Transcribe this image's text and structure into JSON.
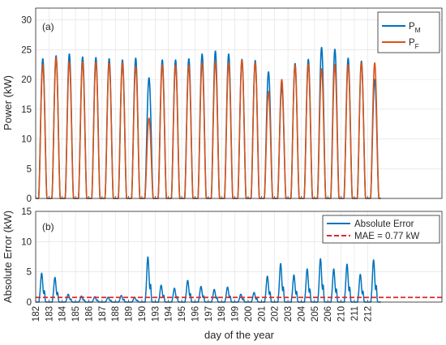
{
  "chart_data": [
    {
      "type": "line",
      "panel_label": "(a)",
      "ylabel": "Power (kW)",
      "xlabel": "",
      "xlim": [
        182,
        212.6
      ],
      "ylim": [
        0,
        32
      ],
      "yticks": [
        0,
        5,
        10,
        15,
        20,
        25,
        30
      ],
      "grid": true,
      "legend_position": "top-right",
      "days": [
        "182",
        "183",
        "184",
        "185",
        "186",
        "187",
        "188",
        "189",
        "190",
        "193",
        "194",
        "195",
        "196",
        "197",
        "198",
        "199",
        "200",
        "201",
        "202",
        "203",
        "204",
        "205",
        "206",
        "210",
        "211",
        "212"
      ],
      "series": [
        {
          "name_main": "P",
          "name_sub": "M",
          "color": "#0072BD",
          "daily_peak": [
            23.5,
            24,
            24.3,
            23.8,
            23.7,
            23.5,
            23.3,
            23.6,
            20.3,
            23.3,
            23.3,
            23.5,
            24.3,
            24.8,
            24.3,
            23.4,
            23.2,
            21.3,
            18.9,
            22.7,
            23.4,
            25.4,
            25.1,
            23.6,
            23.1,
            20.0
          ]
        },
        {
          "name_main": "P",
          "name_sub": "F",
          "color": "#D95319",
          "daily_peak": [
            22.5,
            23.7,
            23.0,
            23.0,
            22.9,
            22.8,
            22.8,
            22.2,
            13.5,
            22.5,
            22.4,
            22.4,
            22.8,
            23.0,
            22.8,
            23.3,
            22.8,
            18.0,
            20.0,
            22.4,
            22.6,
            21.8,
            22.5,
            22.5,
            22.8,
            22.8
          ]
        }
      ]
    },
    {
      "type": "line",
      "panel_label": "(b)",
      "ylabel": "Absolute Error (kW)",
      "xlabel": "day of the year",
      "xlim": [
        182,
        212.6
      ],
      "ylim": [
        0,
        15
      ],
      "yticks": [
        0,
        5,
        10,
        15
      ],
      "grid": true,
      "legend_position": "top-right",
      "series": [
        {
          "name": "Absolute Error",
          "color": "#0072BD",
          "daily_peak": [
            4.8,
            4.1,
            1.3,
            1.0,
            0.9,
            0.8,
            1.1,
            0.8,
            7.5,
            2.8,
            2.3,
            3.6,
            2.6,
            2.1,
            2.5,
            1.3,
            1.6,
            4.3,
            6.4,
            4.5,
            5.5,
            7.2,
            5.5,
            6.3,
            4.6,
            7.0
          ]
        },
        {
          "name": "MAE = 0.77 kW",
          "color": "#E3242B",
          "value": 0.77
        }
      ]
    }
  ]
}
